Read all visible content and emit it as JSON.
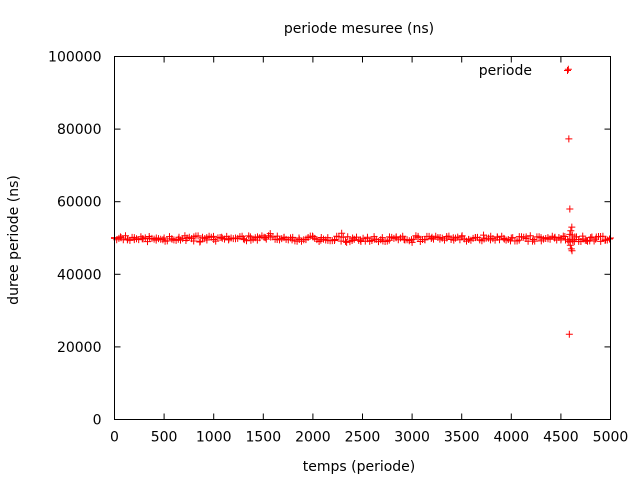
{
  "chart_data": {
    "type": "scatter",
    "title": "periode mesuree (ns)",
    "xlabel": "temps (periode)",
    "ylabel": "duree periode (ns)",
    "xlim": [
      0,
      5000
    ],
    "ylim": [
      0,
      100000
    ],
    "x_ticks": [
      0,
      500,
      1000,
      1500,
      2000,
      2500,
      3000,
      3500,
      4000,
      4500,
      5000
    ],
    "x_tick_labels": [
      "0",
      "500",
      "1000",
      "1500",
      "2000",
      "2500",
      "3000",
      "3500",
      "4000",
      "4500",
      "5000"
    ],
    "y_ticks": [
      0,
      20000,
      40000,
      60000,
      80000,
      100000
    ],
    "y_tick_labels": [
      "0",
      "20000",
      "40000",
      "60000",
      "80000",
      "100000"
    ],
    "grid": false,
    "legend_position": "top-right",
    "marker": "plus",
    "series": [
      {
        "name": "periode",
        "color": "#ff0000",
        "baseline_value": 49800,
        "points": [
          {
            "x": 0,
            "y": 49900
          },
          {
            "x": 60,
            "y": 50300
          },
          {
            "x": 130,
            "y": 49500
          },
          {
            "x": 200,
            "y": 50100
          },
          {
            "x": 280,
            "y": 49800
          },
          {
            "x": 350,
            "y": 50400
          },
          {
            "x": 420,
            "y": 49400
          },
          {
            "x": 500,
            "y": 50000
          },
          {
            "x": 580,
            "y": 49700
          },
          {
            "x": 650,
            "y": 50200
          },
          {
            "x": 720,
            "y": 49300
          },
          {
            "x": 800,
            "y": 50300
          },
          {
            "x": 860,
            "y": 48900
          },
          {
            "x": 930,
            "y": 50100
          },
          {
            "x": 1000,
            "y": 49600
          },
          {
            "x": 1080,
            "y": 50200
          },
          {
            "x": 1150,
            "y": 49500
          },
          {
            "x": 1220,
            "y": 50000
          },
          {
            "x": 1300,
            "y": 49800
          },
          {
            "x": 1370,
            "y": 50300
          },
          {
            "x": 1440,
            "y": 49400
          },
          {
            "x": 1520,
            "y": 50100
          },
          {
            "x": 1570,
            "y": 51200
          },
          {
            "x": 1640,
            "y": 49600
          },
          {
            "x": 1710,
            "y": 50200
          },
          {
            "x": 1790,
            "y": 49500
          },
          {
            "x": 1860,
            "y": 50000
          },
          {
            "x": 1930,
            "y": 49700
          },
          {
            "x": 2000,
            "y": 50300
          },
          {
            "x": 2080,
            "y": 49400
          },
          {
            "x": 2150,
            "y": 50100
          },
          {
            "x": 2220,
            "y": 49600
          },
          {
            "x": 2290,
            "y": 51300
          },
          {
            "x": 2340,
            "y": 48800
          },
          {
            "x": 2400,
            "y": 50000
          },
          {
            "x": 2480,
            "y": 49500
          },
          {
            "x": 2550,
            "y": 50200
          },
          {
            "x": 2620,
            "y": 49700
          },
          {
            "x": 2700,
            "y": 50100
          },
          {
            "x": 2770,
            "y": 49400
          },
          {
            "x": 2840,
            "y": 50300
          },
          {
            "x": 2920,
            "y": 49600
          },
          {
            "x": 3000,
            "y": 48800
          },
          {
            "x": 3060,
            "y": 50100
          },
          {
            "x": 3130,
            "y": 49500
          },
          {
            "x": 3200,
            "y": 50200
          },
          {
            "x": 3280,
            "y": 49700
          },
          {
            "x": 3350,
            "y": 50000
          },
          {
            "x": 3420,
            "y": 49400
          },
          {
            "x": 3500,
            "y": 50300
          },
          {
            "x": 3570,
            "y": 49600
          },
          {
            "x": 3640,
            "y": 50100
          },
          {
            "x": 3720,
            "y": 50800
          },
          {
            "x": 3790,
            "y": 49500
          },
          {
            "x": 3860,
            "y": 50200
          },
          {
            "x": 3930,
            "y": 49700
          },
          {
            "x": 4000,
            "y": 50000
          },
          {
            "x": 4080,
            "y": 49400
          },
          {
            "x": 4150,
            "y": 50300
          },
          {
            "x": 4220,
            "y": 49600
          },
          {
            "x": 4300,
            "y": 50100
          },
          {
            "x": 4370,
            "y": 49800
          },
          {
            "x": 4440,
            "y": 50200
          },
          {
            "x": 4500,
            "y": 49500
          },
          {
            "x": 4540,
            "y": 50400
          },
          {
            "x": 4580,
            "y": 49000
          },
          {
            "x": 4590,
            "y": 51000
          },
          {
            "x": 4595,
            "y": 48000
          },
          {
            "x": 4600,
            "y": 52000
          },
          {
            "x": 4605,
            "y": 47000
          },
          {
            "x": 4610,
            "y": 53000
          },
          {
            "x": 4612,
            "y": 46500
          },
          {
            "x": 4615,
            "y": 50800
          },
          {
            "x": 4620,
            "y": 49200
          },
          {
            "x": 4640,
            "y": 50300
          },
          {
            "x": 4680,
            "y": 49600
          },
          {
            "x": 4720,
            "y": 50500
          },
          {
            "x": 4760,
            "y": 49300
          },
          {
            "x": 4800,
            "y": 50100
          },
          {
            "x": 4850,
            "y": 49700
          },
          {
            "x": 4900,
            "y": 50400
          },
          {
            "x": 4950,
            "y": 49500
          },
          {
            "x": 5000,
            "y": 50000
          },
          {
            "x": 4575,
            "y": 96500
          },
          {
            "x": 4580,
            "y": 77300
          },
          {
            "x": 4590,
            "y": 58000
          },
          {
            "x": 4585,
            "y": 23500
          }
        ]
      }
    ]
  }
}
